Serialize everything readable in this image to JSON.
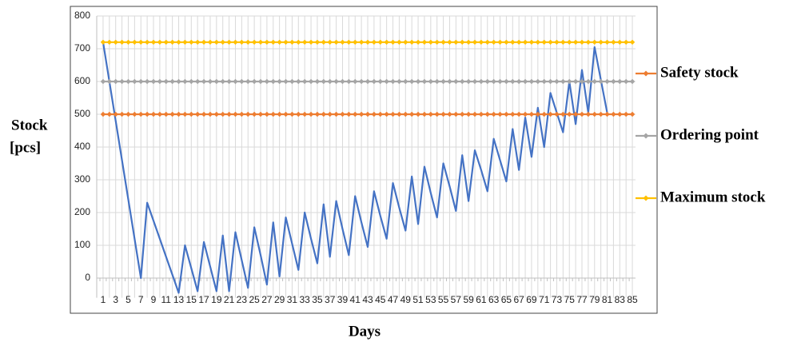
{
  "chart_data": {
    "type": "line",
    "xlabel": "Days",
    "ylabel": [
      "Stock",
      "[pcs]"
    ],
    "categories": [
      1,
      null,
      3,
      null,
      5,
      null,
      7,
      null,
      9,
      null,
      11,
      null,
      13,
      null,
      15,
      null,
      17,
      null,
      19,
      null,
      21,
      null,
      23,
      null,
      25,
      null,
      27,
      null,
      29,
      null,
      31,
      null,
      33,
      null,
      35,
      null,
      37,
      null,
      39,
      null,
      41,
      null,
      43,
      null,
      45,
      null,
      47,
      null,
      49,
      null,
      51,
      null,
      53,
      null,
      55,
      null,
      57,
      null,
      59,
      null,
      61,
      null,
      63,
      null,
      65,
      null,
      67,
      null,
      69,
      null,
      71,
      null,
      73,
      null,
      75,
      null,
      77,
      null,
      79,
      null,
      81,
      null,
      83,
      null,
      85
    ],
    "ylim": [
      -60,
      800
    ],
    "yticks": [
      0,
      100,
      200,
      300,
      400,
      500,
      600,
      700,
      800
    ],
    "grid": true,
    "legend": "right",
    "series": [
      {
        "color": "#4472c4",
        "marker": false,
        "values": [
          720,
          600,
          480,
          360,
          240,
          120,
          0,
          230,
          175,
          120,
          65,
          10,
          -45,
          100,
          30,
          -40,
          110,
          35,
          -40,
          130,
          -40,
          140,
          55,
          -30,
          155,
          70,
          -20,
          170,
          5,
          185,
          105,
          25,
          200,
          120,
          45,
          225,
          65,
          235,
          150,
          70,
          250,
          170,
          95,
          265,
          190,
          120,
          290,
          215,
          145,
          310,
          165,
          340,
          260,
          185,
          350,
          280,
          205,
          375,
          235,
          390,
          330,
          265,
          425,
          360,
          295,
          455,
          330,
          490,
          370,
          520,
          400,
          565,
          505,
          445,
          600,
          470,
          635,
          505,
          705,
          605,
          505,
          null,
          null,
          null,
          null
        ]
      },
      {
        "name": "Safety stock",
        "color": "#ed7d31",
        "marker": true,
        "values": [
          500,
          500,
          500,
          500,
          500,
          500,
          500,
          500,
          500,
          500,
          500,
          500,
          500,
          500,
          500,
          500,
          500,
          500,
          500,
          500,
          500,
          500,
          500,
          500,
          500,
          500,
          500,
          500,
          500,
          500,
          500,
          500,
          500,
          500,
          500,
          500,
          500,
          500,
          500,
          500,
          500,
          500,
          500,
          500,
          500,
          500,
          500,
          500,
          500,
          500,
          500,
          500,
          500,
          500,
          500,
          500,
          500,
          500,
          500,
          500,
          500,
          500,
          500,
          500,
          500,
          500,
          500,
          500,
          500,
          500,
          500,
          500,
          500,
          500,
          500,
          500,
          500,
          500,
          500,
          500,
          500,
          500,
          500,
          500,
          500
        ]
      },
      {
        "name": "Ordering point",
        "color": "#a5a5a5",
        "marker": true,
        "values": [
          600,
          600,
          600,
          600,
          600,
          600,
          600,
          600,
          600,
          600,
          600,
          600,
          600,
          600,
          600,
          600,
          600,
          600,
          600,
          600,
          600,
          600,
          600,
          600,
          600,
          600,
          600,
          600,
          600,
          600,
          600,
          600,
          600,
          600,
          600,
          600,
          600,
          600,
          600,
          600,
          600,
          600,
          600,
          600,
          600,
          600,
          600,
          600,
          600,
          600,
          600,
          600,
          600,
          600,
          600,
          600,
          600,
          600,
          600,
          600,
          600,
          600,
          600,
          600,
          600,
          600,
          600,
          600,
          600,
          600,
          600,
          600,
          600,
          600,
          600,
          600,
          600,
          600,
          600,
          600,
          600,
          600,
          600,
          600,
          600
        ]
      },
      {
        "name": "Maximum stock",
        "color": "#ffc000",
        "marker": true,
        "values": [
          720,
          720,
          720,
          720,
          720,
          720,
          720,
          720,
          720,
          720,
          720,
          720,
          720,
          720,
          720,
          720,
          720,
          720,
          720,
          720,
          720,
          720,
          720,
          720,
          720,
          720,
          720,
          720,
          720,
          720,
          720,
          720,
          720,
          720,
          720,
          720,
          720,
          720,
          720,
          720,
          720,
          720,
          720,
          720,
          720,
          720,
          720,
          720,
          720,
          720,
          720,
          720,
          720,
          720,
          720,
          720,
          720,
          720,
          720,
          720,
          720,
          720,
          720,
          720,
          720,
          720,
          720,
          720,
          720,
          720,
          720,
          720,
          720,
          720,
          720,
          720,
          720,
          720,
          720,
          720,
          720,
          720,
          720,
          720,
          720
        ]
      }
    ]
  }
}
